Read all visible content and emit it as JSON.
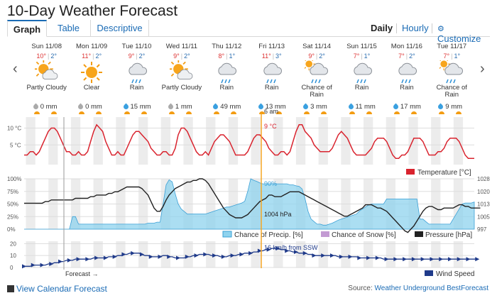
{
  "title": "10-Day Weather Forecast",
  "tabs": [
    {
      "label": "Graph"
    },
    {
      "label": "Table"
    },
    {
      "label": "Descriptive"
    }
  ],
  "view_links": {
    "daily": "Daily",
    "hourly": "Hourly",
    "customize": "Customize"
  },
  "days": [
    {
      "date": "Sun 11/08",
      "hi": "10°",
      "lo": "2°",
      "icon": "partly-cloudy-icon",
      "cond": "Partly Cloudy",
      "precip": "0 mm"
    },
    {
      "date": "Mon 11/09",
      "hi": "11°",
      "lo": "2°",
      "icon": "clear-icon",
      "cond": "Clear",
      "precip": "0 mm"
    },
    {
      "date": "Tue 11/10",
      "hi": "9°",
      "lo": "2°",
      "icon": "rain-icon",
      "cond": "Rain",
      "precip": "15 mm"
    },
    {
      "date": "Wed 11/11",
      "hi": "9°",
      "lo": "2°",
      "icon": "partly-cloudy-icon",
      "cond": "Partly Cloudy",
      "precip": "1 mm"
    },
    {
      "date": "Thu 11/12",
      "hi": "8°",
      "lo": "1°",
      "icon": "rain-icon",
      "cond": "Rain",
      "precip": "49 mm"
    },
    {
      "date": "Fri 11/13",
      "hi": "11°",
      "lo": "3°",
      "icon": "rain-icon",
      "cond": "Rain",
      "precip": "13 mm"
    },
    {
      "date": "Sat 11/14",
      "hi": "9°",
      "lo": "2°",
      "icon": "chance-rain-icon",
      "cond": "Chance of Rain",
      "precip": "3 mm"
    },
    {
      "date": "Sun 11/15",
      "hi": "7°",
      "lo": "1°",
      "icon": "rain-icon",
      "cond": "Rain",
      "precip": "11 mm"
    },
    {
      "date": "Mon 11/16",
      "hi": "7°",
      "lo": "2°",
      "icon": "rain-icon",
      "cond": "Rain",
      "precip": "17 mm"
    },
    {
      "date": "Tue 11/17",
      "hi": "7°",
      "lo": "1°",
      "icon": "chance-rain-icon",
      "cond": "Chance of Rain",
      "precip": "9 mm"
    }
  ],
  "colors": {
    "temp": "#d9232e",
    "precip": "#8fd3ee",
    "snow": "#c39bd3",
    "pressure": "#222222",
    "wind": "#1f3a8a",
    "cursor": "#f5a623"
  },
  "chart_data": [
    {
      "type": "line",
      "name": "temperature",
      "yticks": [
        "10 °C",
        "5 °C"
      ],
      "legend": "Temperature [°C]",
      "cursor_label": "6 am",
      "cursor_value": "9 °C",
      "values": [
        2,
        2,
        3,
        3,
        2,
        3,
        5,
        7,
        9,
        10,
        10,
        9,
        7,
        5,
        3,
        3,
        2,
        2,
        3,
        2,
        2,
        3,
        6,
        9,
        11,
        10,
        9,
        6,
        4,
        2,
        2,
        3,
        2,
        2,
        4,
        6,
        8,
        9,
        9,
        8,
        7,
        6,
        4,
        3,
        2,
        2,
        3,
        3,
        2,
        2,
        4,
        8,
        10,
        10,
        9,
        7,
        5,
        3,
        2,
        2,
        3,
        2,
        4,
        6,
        7,
        8,
        8,
        7,
        6,
        4,
        2,
        2,
        2,
        2,
        3,
        5,
        7,
        8,
        8,
        7,
        6,
        4,
        3,
        2,
        2,
        3,
        3,
        2,
        3,
        6,
        9,
        11,
        11,
        9,
        8,
        7,
        5,
        4,
        3,
        3,
        3,
        3,
        4,
        6,
        8,
        9,
        8,
        7,
        5,
        3,
        2,
        2,
        2,
        2,
        3,
        4,
        6,
        7,
        7,
        7,
        6,
        4,
        2,
        1,
        1,
        2,
        2,
        3,
        5,
        7,
        7,
        7,
        6,
        4,
        2,
        2,
        2,
        3,
        3,
        4,
        6,
        7,
        7,
        7,
        6,
        4,
        2,
        1,
        1,
        1
      ]
    },
    {
      "type": "area",
      "name": "precipitation-pressure",
      "yticks_left": [
        "100%",
        "75%",
        "50%",
        "25%",
        "0%"
      ],
      "yticks_right": [
        "1028",
        "1020",
        "1013",
        "1005",
        "997"
      ],
      "legend": [
        "Chance of Precip. [%]",
        "Chance of Snow [%]",
        "Pressure [hPa]"
      ],
      "cursor_precip": "90%",
      "cursor_pressure": "1004 hPa",
      "precip": [
        0,
        0,
        0,
        0,
        0,
        0,
        0,
        0,
        0,
        0,
        0,
        0,
        0,
        0,
        0,
        0,
        25,
        25,
        10,
        10,
        10,
        10,
        10,
        10,
        10,
        10,
        10,
        10,
        10,
        10,
        10,
        10,
        10,
        10,
        10,
        10,
        10,
        10,
        10,
        10,
        10,
        12,
        12,
        12,
        14,
        14,
        50,
        88,
        98,
        94,
        70,
        50,
        40,
        35,
        30,
        30,
        30,
        30,
        30,
        30,
        30,
        32,
        34,
        36,
        38,
        40,
        42,
        44,
        44,
        46,
        48,
        50,
        52,
        55,
        75,
        100,
        97,
        95,
        92,
        90,
        90,
        90,
        90,
        90,
        90,
        90,
        90,
        90,
        88,
        88,
        86,
        85,
        80,
        60,
        35,
        20,
        15,
        10,
        10,
        8,
        8,
        10,
        12,
        15,
        18,
        20,
        22,
        24,
        26,
        28,
        30,
        36,
        40,
        44,
        48,
        50,
        50,
        50,
        50,
        50,
        60,
        60,
        60,
        60,
        60,
        60,
        60,
        60,
        60,
        60,
        60,
        20,
        20,
        15,
        10,
        10,
        10,
        10,
        10,
        10,
        10,
        10,
        20,
        30,
        40,
        50,
        52,
        52,
        52,
        54
      ],
      "pressure": [
        1013,
        1013,
        1013,
        1013,
        1013,
        1013,
        1013,
        1014,
        1014,
        1015,
        1015,
        1015,
        1015,
        1015,
        1015,
        1015,
        1015,
        1016,
        1016,
        1016,
        1016,
        1016,
        1017,
        1017,
        1018,
        1018,
        1018,
        1018,
        1019,
        1019,
        1020,
        1020,
        1021,
        1022,
        1023,
        1023,
        1023,
        1023,
        1023,
        1022,
        1020,
        1018,
        1014,
        1010,
        1008,
        1008,
        1011,
        1015,
        1018,
        1020,
        1022,
        1023,
        1024,
        1025,
        1026,
        1026,
        1027,
        1027,
        1028,
        1028,
        1027,
        1025,
        1022,
        1019,
        1016,
        1013,
        1010,
        1008,
        1006,
        1005,
        1004,
        1004,
        1004,
        1005,
        1006,
        1008,
        1010,
        1012,
        1014,
        1015,
        1016,
        1018,
        1018,
        1017,
        1017,
        1017,
        1018,
        1019,
        1020,
        1020,
        1020,
        1020,
        1019,
        1018,
        1017,
        1016,
        1015,
        1014,
        1013,
        1012,
        1011,
        1010,
        1009,
        1008,
        1007,
        1006,
        1005,
        1005,
        1006,
        1007,
        1008,
        1009,
        1010,
        1012,
        1012,
        1012,
        1011,
        1010,
        1010,
        1009,
        1008,
        1006,
        1004,
        1002,
        1000,
        998,
        996,
        995,
        997,
        999,
        1002,
        1005,
        1008,
        1010,
        1011,
        1011,
        1010,
        1009,
        1009,
        1010,
        1010,
        1010,
        1010,
        1011,
        1012,
        1012,
        1011,
        1011,
        1010,
        1010,
        1010,
        1010
      ]
    },
    {
      "type": "line",
      "name": "wind",
      "yticks": [
        "20",
        "10",
        "0"
      ],
      "legend": "Wind Speed",
      "cursor_label": "16 km/h from SSW",
      "forecast_label": "Forecast →",
      "values": [
        1,
        1,
        1,
        2,
        2,
        2,
        2,
        2,
        3,
        3,
        4,
        4,
        5,
        5,
        6,
        6,
        6,
        7,
        7,
        7,
        7,
        7,
        7,
        8,
        8,
        8,
        8,
        8,
        9,
        9,
        9,
        10,
        10,
        11,
        11,
        12,
        12,
        12,
        12,
        11,
        10,
        10,
        9,
        9,
        9,
        9,
        10,
        10,
        9,
        9,
        8,
        8,
        8,
        8,
        9,
        9,
        10,
        10,
        11,
        11,
        11,
        11,
        10,
        10,
        10,
        9,
        9,
        9,
        10,
        10,
        10,
        11,
        11,
        12,
        12,
        12,
        13,
        13,
        14,
        14,
        15,
        15,
        16,
        16,
        16,
        15,
        15,
        14,
        14,
        13,
        13,
        12,
        12,
        12,
        11,
        11,
        10,
        10,
        10,
        10,
        10,
        10,
        10,
        10,
        9,
        9,
        9,
        9,
        9,
        9,
        9,
        8,
        8,
        8,
        8,
        8,
        8,
        8,
        8,
        7,
        7,
        7,
        7,
        7,
        7,
        7,
        7,
        7,
        7,
        7,
        7,
        7,
        7,
        7,
        7,
        7,
        7,
        7,
        7,
        7,
        7,
        7,
        7,
        7,
        7,
        7,
        7,
        7,
        7,
        7,
        7
      ]
    }
  ],
  "footer": {
    "calendar": "View Calendar Forecast",
    "source_prefix": "Source: ",
    "source_link": "Weather Underground BestForecast"
  }
}
